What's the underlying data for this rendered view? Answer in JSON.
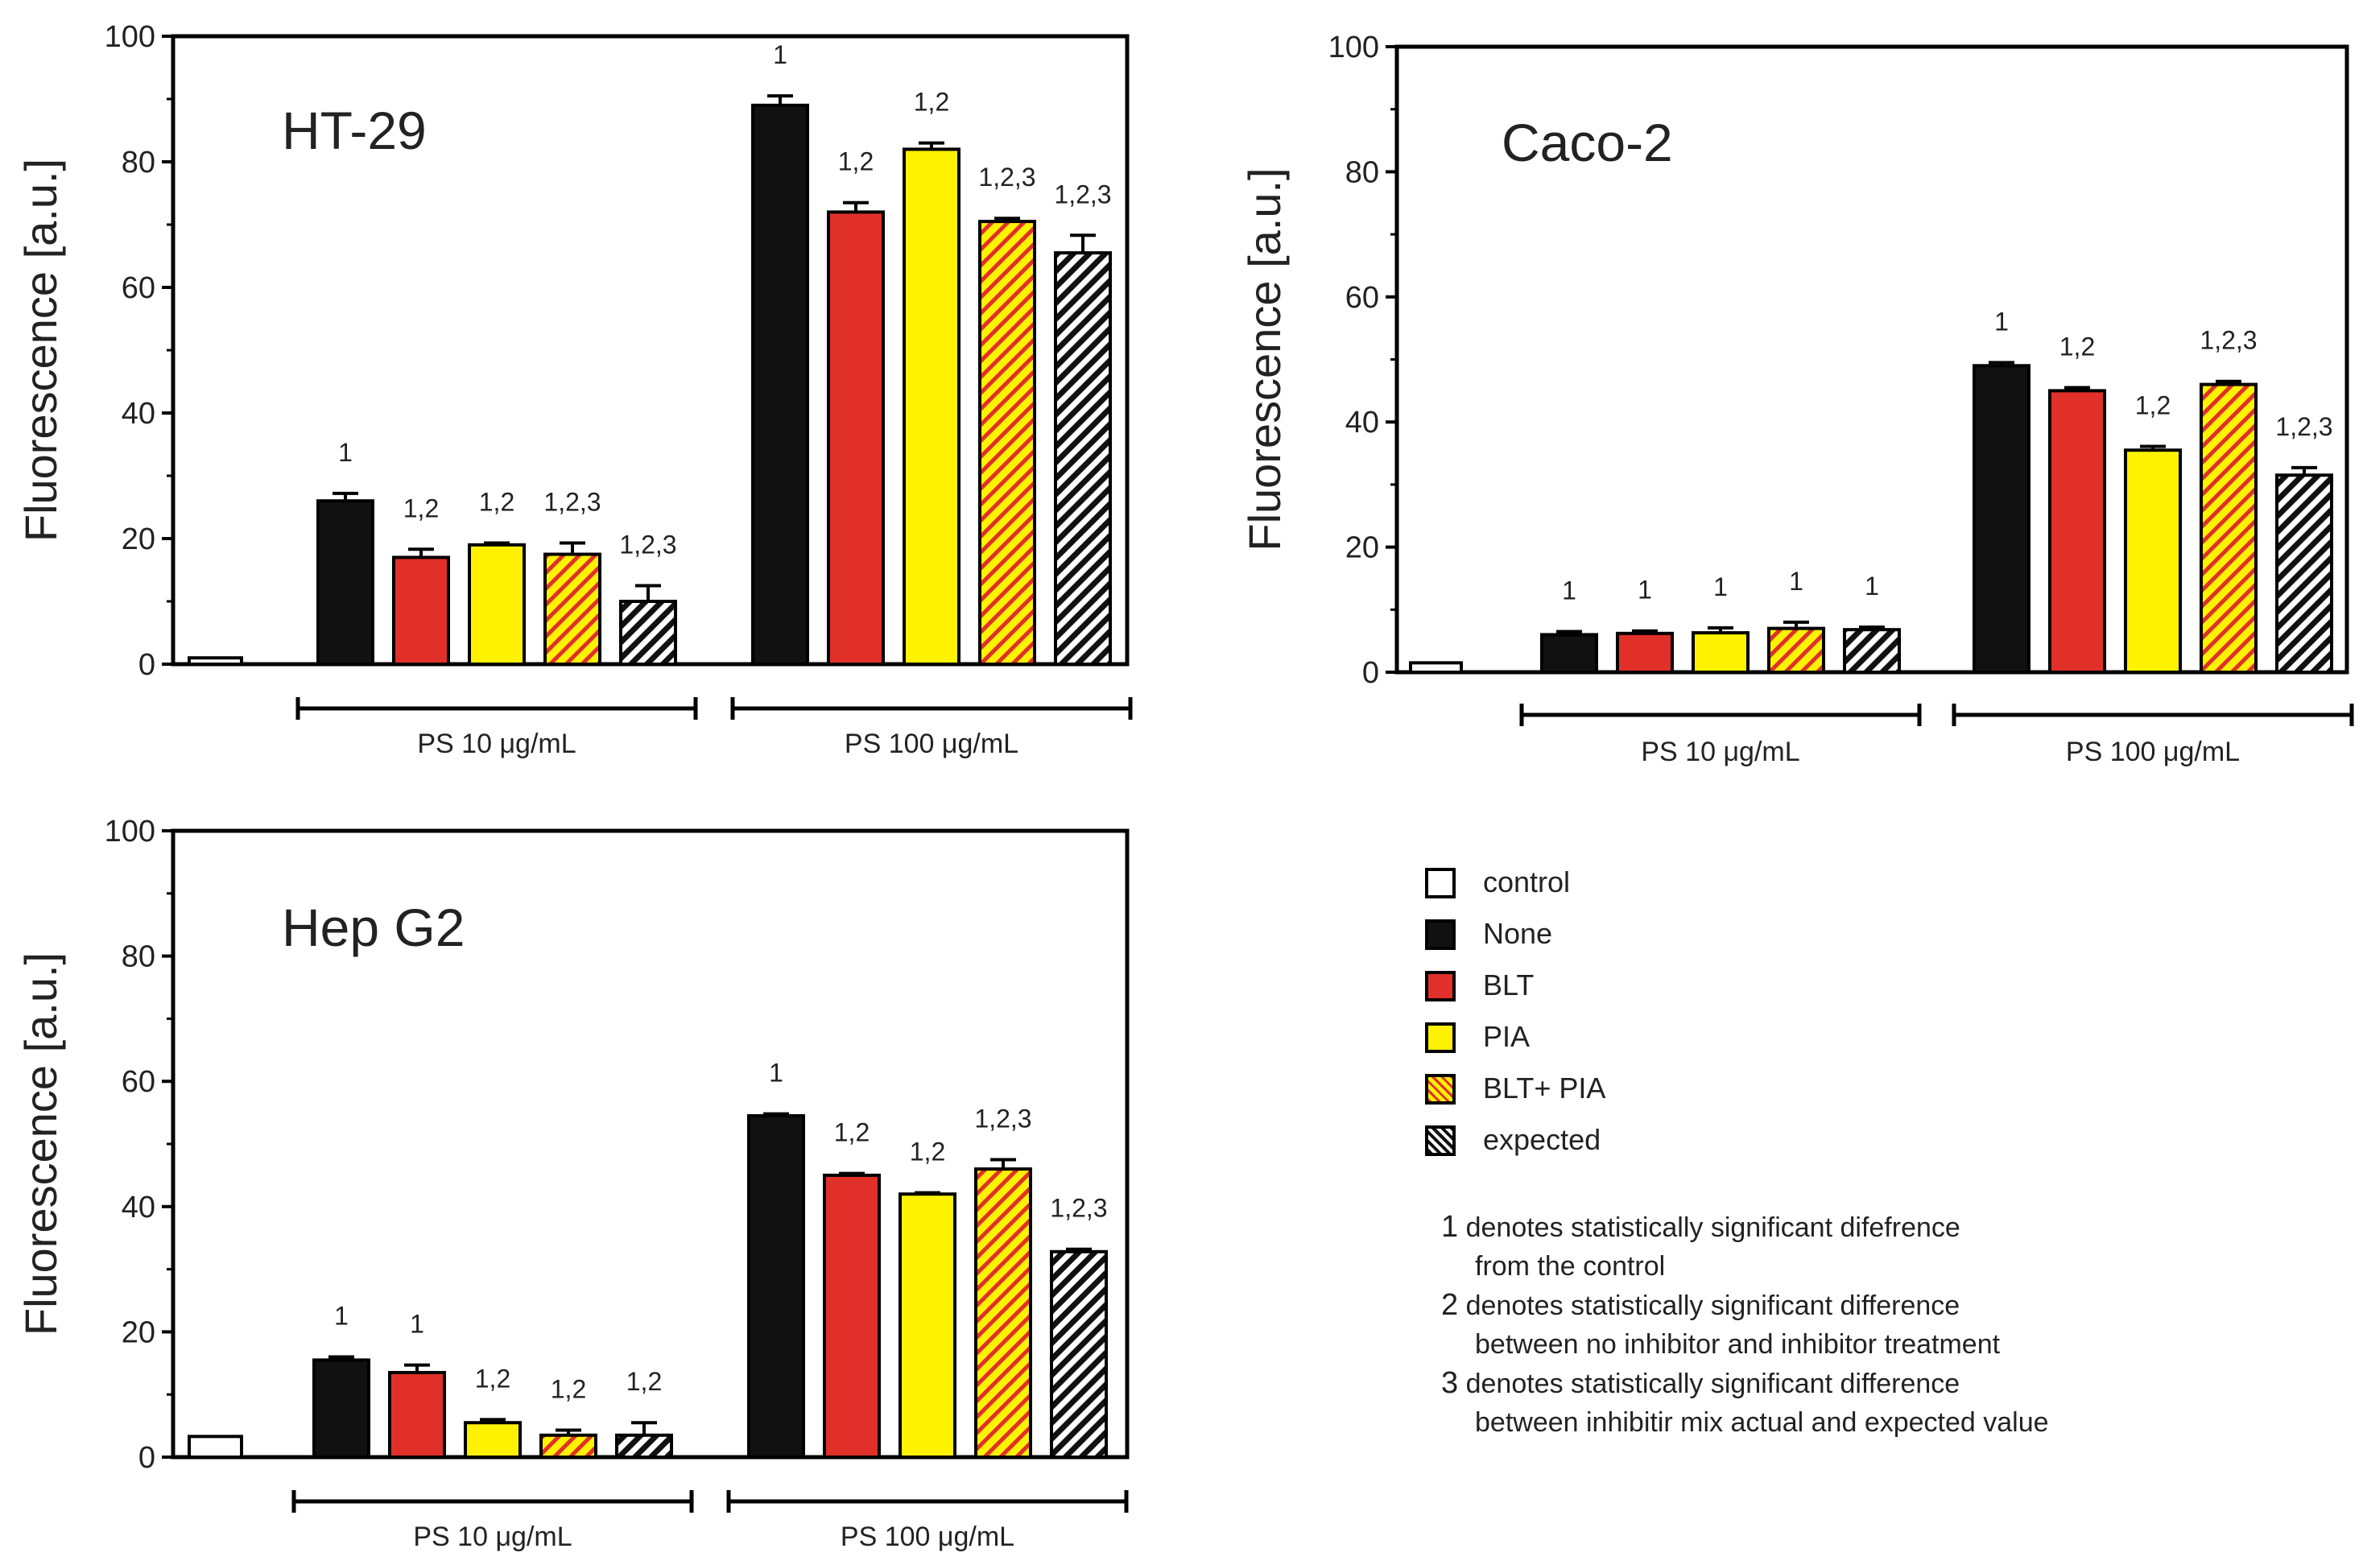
{
  "figure": {
    "y_axis_label": "Fluorescence [a.u.]",
    "group_labels": [
      "PS 10 μg/mL",
      "PS 100 μg/mL"
    ],
    "colors": {
      "control": "#ffffff",
      "None": "#111111",
      "BLT": "#e1302a",
      "PIA": "#fff200",
      "hatch_red": "#e1302a",
      "hatch_black": "#111111"
    }
  },
  "legend": {
    "items": [
      {
        "label": "control",
        "key": "control"
      },
      {
        "label": "None",
        "key": "None"
      },
      {
        "label": "BLT",
        "key": "BLT"
      },
      {
        "label": "PIA",
        "key": "PIA"
      },
      {
        "label": "BLT+ PIA",
        "key": "BLT_PIA"
      },
      {
        "label": "expected",
        "key": "expected"
      }
    ]
  },
  "notes": [
    {
      "num": "1",
      "text": " denotes statistically significant difefrence",
      "cont": "from the control"
    },
    {
      "num": "2",
      "text": " denotes statistically significant difference",
      "cont": "between no inhibitor and inhibitor treatment"
    },
    {
      "num": "3",
      "text": " denotes statistically significant difference",
      "cont": "between inhibitir mix actual and expected value"
    }
  ],
  "chart_data": [
    {
      "type": "bar",
      "title": "HT-29",
      "ylabel": "Fluorescence [a.u.]",
      "ylim": [
        0,
        100
      ],
      "yticks": [
        0,
        20,
        40,
        60,
        80,
        100
      ],
      "control": {
        "value": 1,
        "error": 0.3
      },
      "groups": [
        {
          "label": "PS 10 μg/mL",
          "bars": [
            {
              "series": "None",
              "value": 26,
              "error": 1.2,
              "sig": "1"
            },
            {
              "series": "BLT",
              "value": 17,
              "error": 1.3,
              "sig": "1,2"
            },
            {
              "series": "PIA",
              "value": 19,
              "error": 0.3,
              "sig": "1,2"
            },
            {
              "series": "BLT_PIA",
              "value": 17.5,
              "error": 1.8,
              "sig": "1,2,3"
            },
            {
              "series": "expected",
              "value": 10,
              "error": 2.5,
              "sig": "1,2,3"
            }
          ]
        },
        {
          "label": "PS 100 μg/mL",
          "bars": [
            {
              "series": "None",
              "value": 89,
              "error": 1.5,
              "sig": "1"
            },
            {
              "series": "BLT",
              "value": 72,
              "error": 1.5,
              "sig": "1,2"
            },
            {
              "series": "PIA",
              "value": 82,
              "error": 1.0,
              "sig": "1,2"
            },
            {
              "series": "BLT_PIA",
              "value": 70.5,
              "error": 0.5,
              "sig": "1,2,3"
            },
            {
              "series": "expected",
              "value": 65.5,
              "error": 2.8,
              "sig": "1,2,3"
            }
          ]
        }
      ]
    },
    {
      "type": "bar",
      "title": "Caco-2",
      "ylabel": "Fluorescence [a.u.]",
      "ylim": [
        0,
        100
      ],
      "yticks": [
        0,
        20,
        40,
        60,
        80,
        100
      ],
      "control": {
        "value": 1.5,
        "error": 0.5
      },
      "groups": [
        {
          "label": "PS 10 μg/mL",
          "bars": [
            {
              "series": "None",
              "value": 6,
              "error": 0.5,
              "sig": "1"
            },
            {
              "series": "BLT",
              "value": 6.2,
              "error": 0.4,
              "sig": "1"
            },
            {
              "series": "PIA",
              "value": 6.3,
              "error": 0.8,
              "sig": "1"
            },
            {
              "series": "BLT_PIA",
              "value": 7,
              "error": 1.0,
              "sig": "1"
            },
            {
              "series": "expected",
              "value": 6.8,
              "error": 0.4,
              "sig": "1"
            }
          ]
        },
        {
          "label": "PS 100 μg/mL",
          "bars": [
            {
              "series": "None",
              "value": 49,
              "error": 0.5,
              "sig": "1"
            },
            {
              "series": "BLT",
              "value": 45,
              "error": 0.5,
              "sig": "1,2"
            },
            {
              "series": "PIA",
              "value": 35.5,
              "error": 0.6,
              "sig": "1,2"
            },
            {
              "series": "BLT_PIA",
              "value": 46,
              "error": 0.5,
              "sig": "1,2,3"
            },
            {
              "series": "expected",
              "value": 31.5,
              "error": 1.2,
              "sig": "1,2,3"
            }
          ]
        }
      ]
    },
    {
      "type": "bar",
      "title": "Hep G2",
      "ylabel": "Fluorescence [a.u.]",
      "ylim": [
        0,
        100
      ],
      "yticks": [
        0,
        20,
        40,
        60,
        80,
        100
      ],
      "control": {
        "value": 3.3,
        "error": 0.2
      },
      "groups": [
        {
          "label": "PS 10 μg/mL",
          "bars": [
            {
              "series": "None",
              "value": 15.5,
              "error": 0.5,
              "sig": "1"
            },
            {
              "series": "BLT",
              "value": 13.5,
              "error": 1.2,
              "sig": "1"
            },
            {
              "series": "PIA",
              "value": 5.5,
              "error": 0.5,
              "sig": "1,2"
            },
            {
              "series": "BLT_PIA",
              "value": 3.5,
              "error": 0.8,
              "sig": "1,2"
            },
            {
              "series": "expected",
              "value": 3.5,
              "error": 2.0,
              "sig": "1,2"
            }
          ]
        },
        {
          "label": "PS 100 μg/mL",
          "bars": [
            {
              "series": "None",
              "value": 54.5,
              "error": 0.3,
              "sig": "1"
            },
            {
              "series": "BLT",
              "value": 45,
              "error": 0.3,
              "sig": "1,2"
            },
            {
              "series": "PIA",
              "value": 42,
              "error": 0.2,
              "sig": "1,2"
            },
            {
              "series": "BLT_PIA",
              "value": 46,
              "error": 1.5,
              "sig": "1,2,3"
            },
            {
              "series": "expected",
              "value": 32.8,
              "error": 0.4,
              "sig": "1,2,3"
            }
          ]
        }
      ]
    }
  ]
}
